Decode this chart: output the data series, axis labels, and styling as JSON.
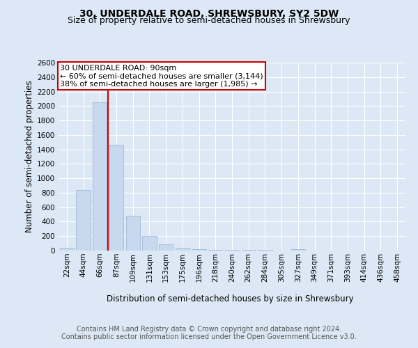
{
  "title": "30, UNDERDALE ROAD, SHREWSBURY, SY2 5DW",
  "subtitle": "Size of property relative to semi-detached houses in Shrewsbury",
  "xlabel": "Distribution of semi-detached houses by size in Shrewsbury",
  "ylabel": "Number of semi-detached properties",
  "categories": [
    "22sqm",
    "44sqm",
    "66sqm",
    "87sqm",
    "109sqm",
    "131sqm",
    "153sqm",
    "175sqm",
    "196sqm",
    "218sqm",
    "240sqm",
    "262sqm",
    "284sqm",
    "305sqm",
    "327sqm",
    "349sqm",
    "371sqm",
    "393sqm",
    "414sqm",
    "436sqm",
    "458sqm"
  ],
  "values": [
    40,
    840,
    2050,
    1460,
    480,
    200,
    90,
    35,
    20,
    10,
    8,
    8,
    8,
    0,
    20,
    0,
    0,
    0,
    0,
    0,
    0
  ],
  "bar_color": "#c8d8ee",
  "bar_edge_color": "#9ab0cc",
  "vline_color": "#cc0000",
  "vline_x": 2.5,
  "annotation_box_color": "#ffffff",
  "annotation_box_edge": "#cc0000",
  "property_label": "30 UNDERDALE ROAD: 90sqm",
  "annotation_line1": "← 60% of semi-detached houses are smaller (3,144)",
  "annotation_line2": "38% of semi-detached houses are larger (1,985) →",
  "ylim": [
    0,
    2600
  ],
  "yticks": [
    0,
    200,
    400,
    600,
    800,
    1000,
    1200,
    1400,
    1600,
    1800,
    2000,
    2200,
    2400,
    2600
  ],
  "bg_color": "#dce8f5",
  "plot_bg_color": "#dce8f5",
  "grid_color": "#ffffff",
  "footer_line1": "Contains HM Land Registry data © Crown copyright and database right 2024.",
  "footer_line2": "Contains public sector information licensed under the Open Government Licence v3.0.",
  "title_fontsize": 10,
  "subtitle_fontsize": 9,
  "axis_label_fontsize": 8.5,
  "tick_fontsize": 7.5,
  "annotation_fontsize": 8,
  "footer_fontsize": 7
}
